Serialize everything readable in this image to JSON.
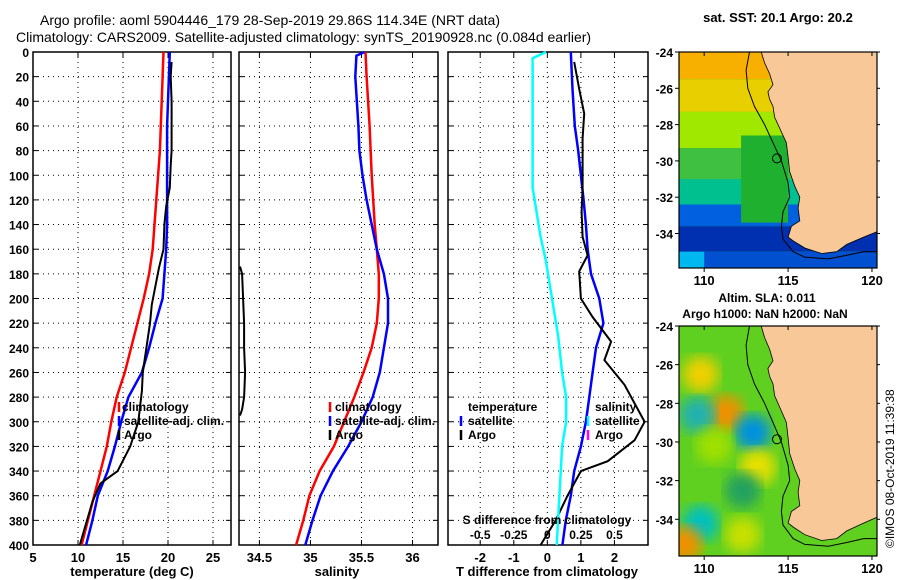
{
  "header": {
    "title_line1": "Argo profile: aoml 5904446_179 28-Sep-2019 29.86S 114.34E (NRT data)",
    "title_line2": "Climatology: CARS2009. Satellite-adjusted climatology: synTS_20190928.nc (0.084d earlier)"
  },
  "colors": {
    "climatology": "#ff0000",
    "satellite": "#0000ff",
    "argo": "#000000",
    "temp_diff_satellite": "#0000ff",
    "salinity_diff_satellite": "#00ffff",
    "salinity_diff_argo": "#ff00ff",
    "land": "#f8c898"
  },
  "chart_data": [
    {
      "id": "temperature",
      "type": "line",
      "xlabel": "temperature (deg C)",
      "ylabel": "",
      "xlim": [
        5,
        27
      ],
      "ylim": [
        400,
        0
      ],
      "xticks": [
        5,
        10,
        15,
        20,
        25
      ],
      "yticks": [
        0,
        20,
        40,
        60,
        80,
        100,
        120,
        140,
        160,
        180,
        200,
        220,
        240,
        260,
        280,
        300,
        320,
        340,
        360,
        380,
        400
      ],
      "grid": true,
      "legend": [
        "climatology",
        "satellite-adj. clim.",
        "Argo"
      ],
      "legend_position": "lower-right",
      "series": [
        {
          "name": "climatology",
          "color_key": "climatology",
          "points": [
            [
              19.5,
              0
            ],
            [
              19.4,
              20
            ],
            [
              19.3,
              40
            ],
            [
              19.2,
              60
            ],
            [
              19.1,
              80
            ],
            [
              18.9,
              100
            ],
            [
              18.7,
              120
            ],
            [
              18.5,
              140
            ],
            [
              18.3,
              160
            ],
            [
              17.9,
              180
            ],
            [
              17.3,
              200
            ],
            [
              16.6,
              220
            ],
            [
              15.9,
              240
            ],
            [
              15.2,
              260
            ],
            [
              14.3,
              280
            ],
            [
              13.7,
              300
            ],
            [
              13.2,
              320
            ],
            [
              12.5,
              340
            ],
            [
              11.8,
              360
            ],
            [
              11.1,
              380
            ],
            [
              10.4,
              400
            ]
          ]
        },
        {
          "name": "satellite-adj. clim.",
          "color_key": "satellite",
          "points": [
            [
              20.2,
              0
            ],
            [
              20.1,
              20
            ],
            [
              20.0,
              40
            ],
            [
              19.9,
              60
            ],
            [
              19.9,
              80
            ],
            [
              19.9,
              100
            ],
            [
              19.9,
              120
            ],
            [
              19.9,
              140
            ],
            [
              19.8,
              160
            ],
            [
              19.6,
              180
            ],
            [
              19.4,
              200
            ],
            [
              18.6,
              220
            ],
            [
              17.9,
              240
            ],
            [
              17.1,
              260
            ],
            [
              15.6,
              280
            ],
            [
              14.8,
              300
            ],
            [
              14.1,
              320
            ],
            [
              13.3,
              340
            ],
            [
              12.2,
              360
            ],
            [
              11.6,
              380
            ],
            [
              10.9,
              400
            ]
          ]
        },
        {
          "name": "Argo",
          "color_key": "argo",
          "points": [
            [
              20.4,
              8
            ],
            [
              20.3,
              20
            ],
            [
              20.4,
              40
            ],
            [
              20.4,
              60
            ],
            [
              20.4,
              80
            ],
            [
              20.3,
              92
            ],
            [
              20.2,
              110
            ],
            [
              19.8,
              125
            ],
            [
              19.6,
              140
            ],
            [
              19.5,
              160
            ],
            [
              19.0,
              175
            ],
            [
              18.6,
              190
            ],
            [
              18.2,
              205
            ],
            [
              18.0,
              220
            ],
            [
              17.6,
              240
            ],
            [
              17.2,
              260
            ],
            [
              17.1,
              275
            ],
            [
              16.7,
              300
            ],
            [
              15.8,
              320
            ],
            [
              14.4,
              340
            ],
            [
              12.5,
              350
            ],
            [
              11.6,
              365
            ],
            [
              11.0,
              380
            ],
            [
              10.2,
              400
            ]
          ]
        }
      ]
    },
    {
      "id": "salinity",
      "type": "line",
      "xlabel": "salinity",
      "xlim": [
        34.3,
        36.25
      ],
      "ylim": [
        400,
        0
      ],
      "xticks": [
        34.5,
        35,
        35.5,
        36
      ],
      "grid": true,
      "legend": [
        "climatology",
        "satellite-adj. clim.",
        "Argo"
      ],
      "legend_position": "lower-right",
      "series": [
        {
          "name": "climatology",
          "color_key": "climatology",
          "points": [
            [
              35.54,
              0
            ],
            [
              35.55,
              20
            ],
            [
              35.58,
              60
            ],
            [
              35.6,
              100
            ],
            [
              35.63,
              140
            ],
            [
              35.65,
              160
            ],
            [
              35.67,
              180
            ],
            [
              35.67,
              200
            ],
            [
              35.65,
              220
            ],
            [
              35.6,
              240
            ],
            [
              35.52,
              260
            ],
            [
              35.43,
              280
            ],
            [
              35.33,
              300
            ],
            [
              35.23,
              320
            ],
            [
              35.09,
              340
            ],
            [
              34.99,
              360
            ],
            [
              34.93,
              380
            ],
            [
              34.86,
              400
            ]
          ]
        },
        {
          "name": "satellite-adj. clim.",
          "color_key": "satellite",
          "points": [
            [
              35.53,
              0
            ],
            [
              35.45,
              3
            ],
            [
              35.44,
              20
            ],
            [
              35.47,
              60
            ],
            [
              35.48,
              80
            ],
            [
              35.51,
              100
            ],
            [
              35.55,
              120
            ],
            [
              35.6,
              140
            ],
            [
              35.65,
              160
            ],
            [
              35.72,
              180
            ],
            [
              35.76,
              200
            ],
            [
              35.76,
              220
            ],
            [
              35.72,
              240
            ],
            [
              35.68,
              260
            ],
            [
              35.61,
              280
            ],
            [
              35.5,
              300
            ],
            [
              35.37,
              320
            ],
            [
              35.22,
              340
            ],
            [
              35.1,
              360
            ],
            [
              35.02,
              380
            ],
            [
              34.95,
              400
            ]
          ]
        },
        {
          "name": "Argo",
          "color_key": "argo",
          "points": [
            [
              34.31,
              174
            ],
            [
              34.33,
              180
            ],
            [
              34.34,
              200
            ],
            [
              34.35,
              220
            ],
            [
              34.35,
              240
            ],
            [
              34.36,
              260
            ],
            [
              34.35,
              280
            ],
            [
              34.33,
              290
            ],
            [
              34.31,
              295
            ]
          ]
        }
      ]
    },
    {
      "id": "difference",
      "type": "line",
      "xlabel": "T difference from climatology",
      "xlim": [
        -2.96,
        3.0
      ],
      "xticks": [
        -2,
        -1,
        0,
        1,
        2
      ],
      "secondary_xlabel": "S difference from climatology",
      "secondary_xlim": [
        -0.74,
        0.75
      ],
      "secondary_xticks": [
        -0.5,
        -0.25,
        0,
        0.25,
        0.5
      ],
      "ylim": [
        400,
        0
      ],
      "grid": true,
      "legend": {
        "temperature": {
          "title": "temperature",
          "items": [
            "satellite",
            "Argo"
          ]
        },
        "salinity": {
          "title": "salinity",
          "items": [
            "satellite",
            "Argo"
          ]
        }
      },
      "legend_position": "lower-center",
      "series": [
        {
          "name": "temperature satellite",
          "color_key": "temp_diff_satellite",
          "points": [
            [
              0.7,
              0
            ],
            [
              0.75,
              30
            ],
            [
              0.82,
              60
            ],
            [
              0.92,
              80
            ],
            [
              1.0,
              100
            ],
            [
              1.08,
              120
            ],
            [
              1.15,
              140
            ],
            [
              1.2,
              160
            ],
            [
              1.3,
              180
            ],
            [
              1.55,
              200
            ],
            [
              1.67,
              220
            ],
            [
              1.45,
              240
            ],
            [
              1.35,
              260
            ],
            [
              1.25,
              280
            ],
            [
              1.15,
              300
            ],
            [
              1.0,
              320
            ],
            [
              0.8,
              340
            ],
            [
              0.7,
              360
            ],
            [
              0.55,
              380
            ],
            [
              0.45,
              400
            ]
          ]
        },
        {
          "name": "temperature Argo",
          "color_key": "argo",
          "points": [
            [
              0.8,
              8
            ],
            [
              0.95,
              30
            ],
            [
              1.1,
              50
            ],
            [
              1.05,
              70
            ],
            [
              1.05,
              90
            ],
            [
              1.05,
              110
            ],
            [
              1.02,
              130
            ],
            [
              1.05,
              150
            ],
            [
              1.2,
              165
            ],
            [
              0.95,
              178
            ],
            [
              1.0,
              200
            ],
            [
              1.35,
              215
            ],
            [
              1.9,
              235
            ],
            [
              1.7,
              250
            ],
            [
              2.3,
              270
            ],
            [
              2.9,
              300
            ],
            [
              2.6,
              315
            ],
            [
              1.8,
              332
            ],
            [
              1.0,
              340
            ],
            [
              0.6,
              360
            ],
            [
              0.25,
              380
            ],
            [
              -0.2,
              400
            ]
          ]
        },
        {
          "name": "salinity satellite",
          "color_key": "salinity_diff_satellite",
          "points": [
            [
              -0.01,
              0
            ],
            [
              -0.11,
              5
            ],
            [
              -0.11,
              60
            ],
            [
              -0.11,
              110
            ],
            [
              -0.08,
              130
            ],
            [
              -0.05,
              150
            ],
            [
              -0.01,
              170
            ],
            [
              0.02,
              190
            ],
            [
              0.05,
              210
            ],
            [
              0.08,
              230
            ],
            [
              0.11,
              260
            ],
            [
              0.14,
              280
            ],
            [
              0.14,
              300
            ],
            [
              0.11,
              320
            ],
            [
              0.1,
              340
            ],
            [
              0.09,
              360
            ],
            [
              0.08,
              380
            ],
            [
              0.07,
              400
            ]
          ]
        }
      ]
    },
    {
      "id": "sst-map",
      "type": "heatmap",
      "title": "sat. SST: 20.1 Argo: 20.2",
      "xlim": [
        108.5,
        120.3
      ],
      "ylim": [
        -35.9,
        -24
      ],
      "xticks": [
        110,
        115,
        120
      ],
      "yticks": [
        -24,
        -26,
        -28,
        -30,
        -32,
        -34
      ],
      "float_position": {
        "lon": 114.34,
        "lat": -29.86
      }
    },
    {
      "id": "sla-map",
      "type": "heatmap",
      "title_line1": "Altim. SLA: 0.011",
      "title_line2": "Argo h1000: NaN h2000: NaN",
      "xlim": [
        108.5,
        120.3
      ],
      "ylim": [
        -35.9,
        -24
      ],
      "xticks": [
        110,
        115,
        120
      ],
      "yticks": [
        -24,
        -26,
        -28,
        -30,
        -32,
        -34
      ],
      "float_position": {
        "lon": 114.34,
        "lat": -29.86
      }
    }
  ],
  "footer": {
    "credit": "©IMOS 08-Oct-2019 11:39:38"
  }
}
